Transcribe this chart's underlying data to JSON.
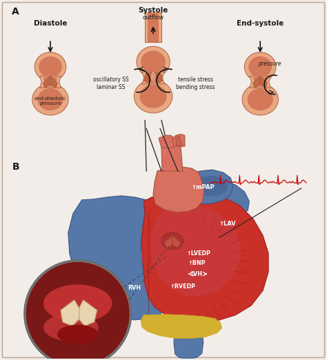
{
  "bg_color": "#f2ede8",
  "border_color": "#c8b8a8",
  "panel_a_label": "A",
  "panel_b_label": "B",
  "diastole_title": "Diastole",
  "systole_title": "Systole",
  "endsystole_title": "End-systole",
  "diastole_text": "end-diastolic\npressure",
  "systole_outflow": "outflow",
  "systole_left_text": "oscillatory SS\nlaminar SS",
  "systole_right_text": "tensile stress\nbending stress",
  "endsystole_text": "pressure",
  "valve_outer": "#e8a882",
  "valve_inner": "#d4785a",
  "valve_leaflet": "#c06848",
  "valve_edge": "#b06040",
  "heart_red": "#c83028",
  "heart_blue": "#5578a8",
  "heart_light": "#d85848",
  "heart_pink": "#e87060",
  "heart_muscle": "#b82828",
  "aorta_color": "#d87060",
  "ecg_color": "#cc0000",
  "label_mPAP": "↑mPAP",
  "label_LAV": "↑LAV",
  "label_LVEDP": "↑LVEDP",
  "label_BNP": "↑BNP",
  "label_LVH": "LVH",
  "label_RVH": "RVH",
  "label_RVEDP": "↑RVEDP",
  "text_white": "#ffffff",
  "text_dark": "#1a1a1a",
  "zoom_bg": "#7a1818",
  "zoom_light": "#c03030",
  "zoom_leaflet": "#e8d0b0",
  "pericardium": "#d4b030",
  "yellow_band": "#c8a820"
}
